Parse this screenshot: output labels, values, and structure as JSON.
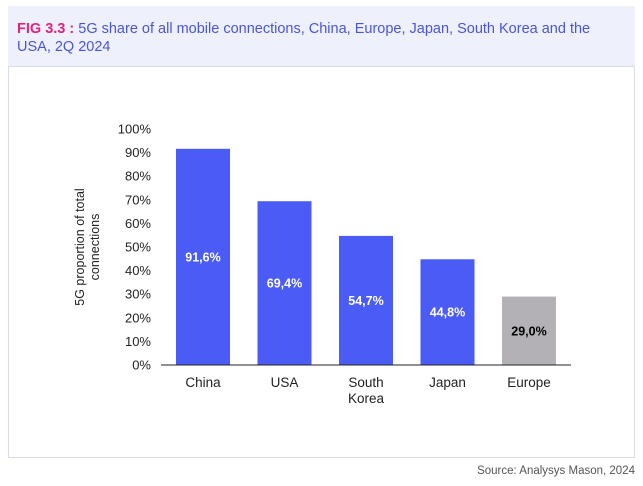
{
  "header": {
    "fig_label": "FIG 3.3 :",
    "title": "5G share of all mobile connections, China, Europe, Japan, South Korea and the USA, 2Q 2024"
  },
  "source": "Source: Analysys Mason, 2024",
  "colors": {
    "primary_bar": "#4a5cf5",
    "highlight_bar": "#b3b1b6",
    "fig_label": "#e0237d",
    "title_text": "#4a55d6",
    "header_bg": "#eef0fb"
  },
  "chart_data": {
    "type": "bar",
    "title": "",
    "xlabel": "",
    "ylabel_lines": [
      "5G proportion of total",
      "connections"
    ],
    "categories": [
      [
        "China"
      ],
      [
        "USA"
      ],
      [
        "South",
        "Korea"
      ],
      [
        "Japan"
      ],
      [
        "Europe"
      ]
    ],
    "values": [
      91.6,
      69.4,
      54.7,
      44.8,
      29.0
    ],
    "value_labels": [
      "91,6%",
      "69,4%",
      "54,7%",
      "44,8%",
      "29,0%"
    ],
    "bar_colors": [
      "#4a5cf5",
      "#4a5cf5",
      "#4a5cf5",
      "#4a5cf5",
      "#b3b1b6"
    ],
    "label_colors": [
      "#ffffff",
      "#ffffff",
      "#ffffff",
      "#ffffff",
      "#000000"
    ],
    "ylim": [
      0,
      100
    ],
    "yticks": [
      0,
      10,
      20,
      30,
      40,
      50,
      60,
      70,
      80,
      90,
      100
    ],
    "ytick_labels": [
      "0%",
      "10%",
      "20%",
      "30%",
      "40%",
      "50%",
      "60%",
      "70%",
      "80%",
      "90%",
      "100%"
    ],
    "grid": false,
    "legend": "none"
  }
}
